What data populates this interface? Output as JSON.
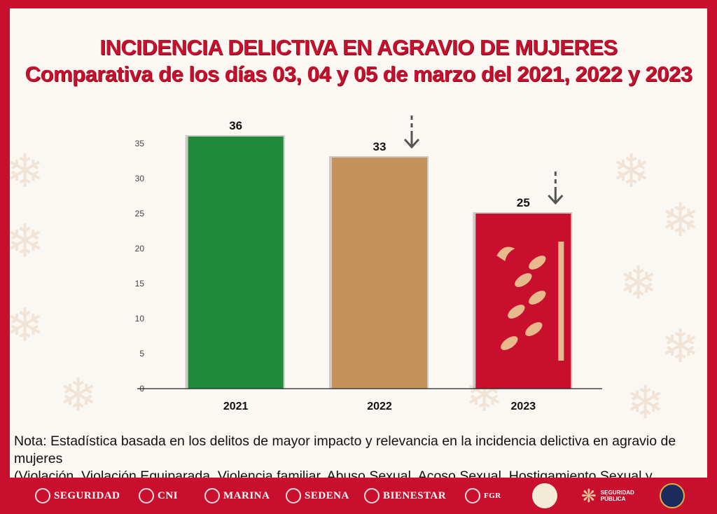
{
  "title": {
    "line1": "INCIDENCIA DELICTIVA EN AGRAVIO DE MUJERES",
    "line2": "Comparativa de los días 03, 04 y 05 de marzo del 2021, 2022 y 2023"
  },
  "chart_data": {
    "type": "bar",
    "categories": [
      "2021",
      "2022",
      "2023"
    ],
    "values": [
      36,
      33,
      25
    ],
    "value_labels": [
      "36",
      "33",
      "25"
    ],
    "colors": [
      "#1f8a3a",
      "#c4925a",
      "#c8102e"
    ],
    "decreasing_indicator": [
      false,
      true,
      true
    ],
    "yticks": [
      "0",
      "5",
      "10",
      "15",
      "20",
      "25",
      "30",
      "35"
    ],
    "ylim": [
      0,
      35
    ],
    "xlabel": "",
    "ylabel": "",
    "title": "INCIDENCIA DELICTIVA EN AGRAVIO DE MUJERES"
  },
  "note": {
    "line1": "Nota: Estadística basada en los delitos de mayor impacto y relevancia en la incidencia delictiva en agravio de mujeres",
    "line2": "(Violación, Violación Equiparada, Violencia familiar, Abuso Sexual, Acoso Sexual, Hostigamiento Sexual y Feminicidio)"
  },
  "footer": {
    "seguridad": "SEGURIDAD",
    "cni": "CNI",
    "marina": "MARINA",
    "sedena": "SEDENA",
    "bienestar": "BIENESTAR",
    "fgr": "FGR",
    "ssp": "SEGURIDAD PÚBLICA"
  }
}
